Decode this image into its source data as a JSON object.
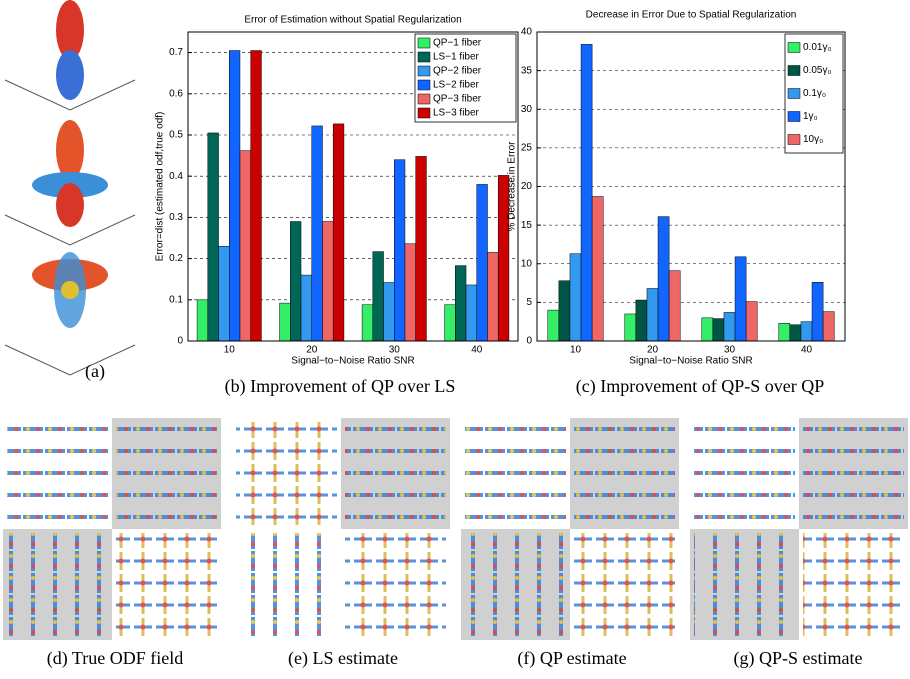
{
  "chart_data": [
    {
      "type": "bar",
      "title": "Error of Estimation without Spatial Regularization",
      "x_label": "Signal−to−Noise Ratio SNR",
      "y_label": "Error=dist (estimated odf,true odf)",
      "categories": [
        "10",
        "20",
        "30",
        "40"
      ],
      "series": [
        {
          "name": "QP−1 fiber",
          "color": "#33ee66",
          "values": [
            0.1,
            0.092,
            0.088,
            0.088
          ]
        },
        {
          "name": "LS−1 fiber",
          "color": "#006655",
          "values": [
            0.505,
            0.29,
            0.217,
            0.183
          ]
        },
        {
          "name": "QP−2 fiber",
          "color": "#3399ee",
          "values": [
            0.23,
            0.16,
            0.142,
            0.136
          ]
        },
        {
          "name": "LS−2 fiber",
          "color": "#1166ff",
          "values": [
            0.705,
            0.522,
            0.44,
            0.38
          ]
        },
        {
          "name": "QP−3 fiber",
          "color": "#ee6666",
          "values": [
            0.462,
            0.29,
            0.236,
            0.215
          ]
        },
        {
          "name": "LS−3 fiber",
          "color": "#cc0000",
          "values": [
            0.705,
            0.527,
            0.448,
            0.402
          ]
        }
      ],
      "ylim": [
        0,
        0.75
      ],
      "yticks": [
        0,
        0.1,
        0.2,
        0.3,
        0.4,
        0.5,
        0.6,
        0.7
      ],
      "grid": true,
      "legend": "top-right"
    },
    {
      "type": "bar",
      "title": "Decrease in Error Due to Spatial Regularization",
      "x_label": "Signal−to−Noise Ratio SNR",
      "y_label": "% Decrease in Error",
      "categories": [
        "10",
        "20",
        "30",
        "40"
      ],
      "series": [
        {
          "name": "0.01γ₀",
          "color": "#33ee66",
          "values": [
            4.0,
            3.5,
            3.0,
            2.3
          ]
        },
        {
          "name": "0.05γ₀",
          "color": "#005544",
          "values": [
            7.8,
            5.3,
            2.9,
            2.1
          ]
        },
        {
          "name": "0.1γ₀",
          "color": "#3399ee",
          "values": [
            11.3,
            6.8,
            3.7,
            2.5
          ]
        },
        {
          "name": "1γ₀",
          "color": "#1166ff",
          "values": [
            38.4,
            16.1,
            10.9,
            7.6
          ]
        },
        {
          "name": "10γ₀",
          "color": "#ee6666",
          "values": [
            18.7,
            9.1,
            5.1,
            3.8
          ]
        }
      ],
      "ylim": [
        0,
        40
      ],
      "yticks": [
        0,
        5,
        10,
        15,
        20,
        25,
        30,
        35,
        40
      ],
      "grid": true,
      "legend": "top-right"
    }
  ],
  "captions": [
    "(a)",
    "(b) Improvement of QP over LS",
    "(c) Improvement of QP-S over QP",
    "(d) True ODF field",
    "(e) LS estimate",
    "(f) QP estimate",
    "(g) QP-S estimate"
  ]
}
